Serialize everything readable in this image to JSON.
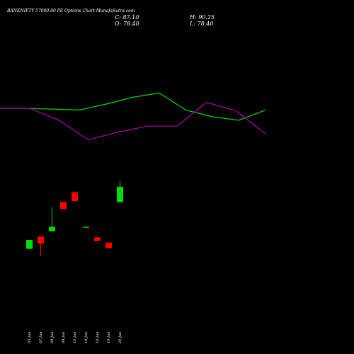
{
  "header": {
    "title": "BANKNIFTY 57000.00 PE Options  Chart MunafaSutra.com",
    "close_label": "C:",
    "close": "87.10",
    "open_label": "O:",
    "open": "78.40",
    "high_label": "H:",
    "high": "90.25",
    "low_label": "L:",
    "low": "78.40"
  },
  "chart_data": {
    "type": "candlestick",
    "title": "BANKNIFTY 57000.00 PE Options  Chart MunafaSutra.com",
    "x_tick_labels": [
      "05 Jun",
      "07 Jun",
      "08 Jun",
      "09 Jun",
      "12 Jun",
      "14 Jun",
      "16 Jun",
      "19 Jun",
      "20 Jun"
    ],
    "colors": {
      "up": "#00dd00",
      "down": "#ff0000",
      "green_line": "#00dd00",
      "magenta_line": "#b000b0",
      "background": "#000000"
    },
    "candles": [
      {
        "date": "05 Jun",
        "open": 52.0,
        "high": 57.0,
        "low": 52.0,
        "close": 57.0
      },
      {
        "date": "07 Jun",
        "open": 59.0,
        "high": 59.0,
        "low": 48.0,
        "close": 55.0
      },
      {
        "date": "08 Jun",
        "open": 62.0,
        "high": 75.5,
        "low": 62.0,
        "close": 64.5
      },
      {
        "date": "09 Jun",
        "open": 78.5,
        "high": 78.5,
        "low": 74.5,
        "close": 74.5
      },
      {
        "date": "12 Jun",
        "open": 84.0,
        "high": 84.5,
        "low": 79.0,
        "close": 79.0
      },
      {
        "date": "14 Jun",
        "open": 64.5,
        "high": 64.5,
        "low": 64.5,
        "close": 64.5
      },
      {
        "date": "16 Jun",
        "open": 58.5,
        "high": 58.5,
        "low": 56.5,
        "close": 56.5
      },
      {
        "date": "19 Jun",
        "open": 55.5,
        "high": 55.5,
        "low": 52.5,
        "close": 52.5
      },
      {
        "date": "20 Jun",
        "open": 78.4,
        "high": 90.25,
        "low": 78.4,
        "close": 87.1
      }
    ],
    "green_line": [
      100,
      100,
      99,
      98,
      105,
      113,
      118,
      98,
      90,
      86,
      98
    ],
    "magenta_line": [
      100,
      100,
      86,
      63,
      72,
      79,
      79,
      107,
      97,
      70
    ]
  }
}
